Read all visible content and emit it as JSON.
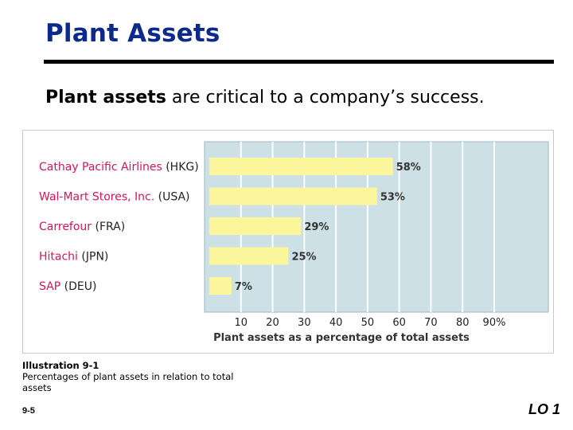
{
  "slide": {
    "title": "Plant Assets",
    "subtitle_bold": "Plant assets",
    "subtitle_rest": " are critical to a company’s success."
  },
  "caption": {
    "title": "Illustration 9-1",
    "text": "Percentages of plant assets in relation to total assets"
  },
  "footer": {
    "page_number": "9-5",
    "lo_label": "LO 1"
  },
  "colors": {
    "title": "#0b2a8a",
    "company_name": "#d4145a",
    "bar_fill": "#fbf59b",
    "plot_bg": "#cce0e5",
    "grid": "#ffffff"
  },
  "chart_data": {
    "type": "bar",
    "orientation": "horizontal",
    "categories": [
      {
        "name": "Cathay Pacific Airlines",
        "country": "(HKG)"
      },
      {
        "name": "Wal-Mart Stores, Inc.",
        "country": "(USA)"
      },
      {
        "name": "Carrefour",
        "country": "(FRA)"
      },
      {
        "name": "Hitachi",
        "country": "(JPN)"
      },
      {
        "name": "SAP",
        "country": "(DEU)"
      }
    ],
    "values": [
      58,
      53,
      29,
      25,
      7
    ],
    "value_labels": [
      "58%",
      "53%",
      "29%",
      "25%",
      "7%"
    ],
    "xlim": [
      0,
      100
    ],
    "xticks": [
      "10",
      "20",
      "30",
      "40",
      "50",
      "60",
      "70",
      "80",
      "90%"
    ],
    "xlabel": "Plant assets as a percentage of total assets",
    "grid": true
  }
}
